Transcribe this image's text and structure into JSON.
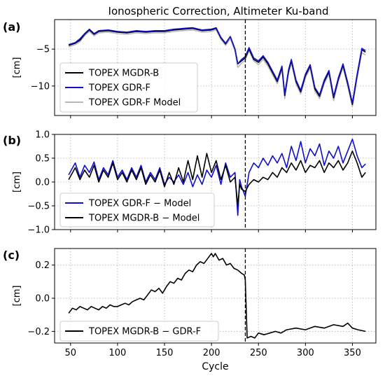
{
  "figure": {
    "title": "Ionospheric Correction, Altimeter Ku-band"
  },
  "chart_data": [
    {
      "panel": "(a)",
      "type": "line",
      "ylabel": "[cm]",
      "xlim": [
        33,
        375
      ],
      "ylim": [
        -14,
        -1
      ],
      "yticks": [
        -5,
        -10
      ],
      "xticks": [
        50,
        100,
        150,
        200,
        250,
        300,
        350
      ],
      "grid": true,
      "legend": "lower-left",
      "vline_x": 236,
      "colors": [
        "#000000",
        "#1010cc",
        "#b8b8b8"
      ],
      "series": [
        {
          "name": "TOPEX MGDR-B",
          "x": [
            48,
            55,
            60,
            65,
            70,
            75,
            80,
            90,
            100,
            110,
            120,
            130,
            140,
            150,
            160,
            170,
            180,
            190,
            200,
            205,
            210,
            215,
            220,
            225,
            228,
            232,
            236,
            240,
            245,
            250,
            255,
            260,
            265,
            270,
            275,
            278,
            282,
            285,
            290,
            295,
            300,
            305,
            310,
            315,
            320,
            325,
            330,
            335,
            340,
            345,
            350,
            355,
            360,
            364
          ],
          "y": [
            -4.5,
            -4.2,
            -3.8,
            -3.0,
            -2.4,
            -3.0,
            -2.6,
            -2.5,
            -2.7,
            -2.8,
            -2.6,
            -2.7,
            -2.6,
            -2.6,
            -2.4,
            -2.3,
            -2.2,
            -2.5,
            -2.4,
            -2.2,
            -3.5,
            -4.3,
            -3.3,
            -5.0,
            -7.0,
            -6.6,
            -6.2,
            -5.0,
            -6.4,
            -6.8,
            -6.1,
            -7.0,
            -8.2,
            -9.4,
            -7.5,
            -11.3,
            -8.0,
            -6.6,
            -9.4,
            -10.8,
            -8.6,
            -7.3,
            -10.4,
            -11.4,
            -9.4,
            -8.1,
            -11.6,
            -9.1,
            -7.2,
            -9.7,
            -12.5,
            -8.6,
            -5.1,
            -5.4
          ]
        },
        {
          "name": "TOPEX GDR-F",
          "x": [
            48,
            55,
            60,
            65,
            70,
            75,
            80,
            90,
            100,
            110,
            120,
            130,
            140,
            150,
            160,
            170,
            180,
            190,
            200,
            205,
            210,
            215,
            220,
            225,
            228,
            232,
            236,
            240,
            245,
            250,
            255,
            260,
            265,
            270,
            275,
            278,
            282,
            285,
            290,
            295,
            300,
            305,
            310,
            315,
            320,
            325,
            330,
            335,
            340,
            345,
            350,
            355,
            360,
            364
          ],
          "y": [
            -4.4,
            -4.1,
            -3.6,
            -2.9,
            -2.3,
            -2.9,
            -2.5,
            -2.4,
            -2.6,
            -2.7,
            -2.5,
            -2.6,
            -2.5,
            -2.5,
            -2.3,
            -2.2,
            -2.1,
            -2.4,
            -2.3,
            -2.1,
            -3.4,
            -4.2,
            -3.3,
            -5.0,
            -7.0,
            -6.4,
            -6.0,
            -4.8,
            -6.2,
            -6.6,
            -5.9,
            -6.8,
            -8.0,
            -9.2,
            -7.3,
            -11.1,
            -7.8,
            -6.4,
            -9.2,
            -10.6,
            -8.4,
            -7.1,
            -10.2,
            -11.2,
            -9.2,
            -7.9,
            -11.4,
            -8.9,
            -7.0,
            -9.5,
            -12.3,
            -8.4,
            -4.9,
            -5.2
          ]
        },
        {
          "name": "TOPEX GDR-F Model",
          "x": [
            48,
            55,
            60,
            65,
            70,
            75,
            80,
            90,
            100,
            110,
            120,
            130,
            140,
            150,
            160,
            170,
            180,
            190,
            200,
            205,
            210,
            215,
            220,
            225,
            228,
            232,
            236,
            240,
            245,
            250,
            255,
            260,
            265,
            270,
            275,
            278,
            282,
            285,
            290,
            295,
            300,
            305,
            310,
            315,
            320,
            325,
            330,
            335,
            340,
            345,
            350,
            355,
            360,
            364
          ],
          "y": [
            -4.7,
            -4.4,
            -4.0,
            -3.2,
            -2.6,
            -3.2,
            -2.8,
            -2.7,
            -2.9,
            -3.0,
            -2.8,
            -2.9,
            -2.8,
            -2.8,
            -2.6,
            -2.5,
            -2.4,
            -2.7,
            -2.6,
            -2.4,
            -3.7,
            -4.5,
            -3.6,
            -5.3,
            -7.5,
            -6.9,
            -6.5,
            -5.2,
            -6.6,
            -7.1,
            -6.4,
            -7.3,
            -8.5,
            -9.7,
            -7.8,
            -11.7,
            -8.3,
            -6.9,
            -9.7,
            -11.1,
            -8.9,
            -7.6,
            -10.7,
            -11.7,
            -9.7,
            -8.4,
            -12.0,
            -9.4,
            -7.5,
            -10.0,
            -12.8,
            -8.9,
            -5.5,
            -5.8
          ]
        }
      ]
    },
    {
      "panel": "(b)",
      "type": "line",
      "ylabel": "[cm]",
      "xlim": [
        33,
        375
      ],
      "ylim": [
        -1.0,
        1.0
      ],
      "yticks": [
        1.0,
        0.5,
        0.0,
        -0.5,
        -1.0
      ],
      "xticks": [
        50,
        100,
        150,
        200,
        250,
        300,
        350
      ],
      "grid": true,
      "legend": "lower-left",
      "vline_x": 236,
      "colors": [
        "#1010cc",
        "#000000"
      ],
      "series": [
        {
          "name": "TOPEX GDR-F − Model",
          "x": [
            48,
            55,
            60,
            65,
            70,
            75,
            80,
            85,
            90,
            95,
            100,
            105,
            110,
            115,
            120,
            125,
            130,
            135,
            140,
            145,
            150,
            155,
            160,
            165,
            170,
            175,
            180,
            185,
            190,
            195,
            200,
            205,
            210,
            215,
            220,
            225,
            228,
            230,
            232,
            236,
            240,
            245,
            250,
            255,
            260,
            265,
            270,
            275,
            280,
            285,
            290,
            295,
            300,
            305,
            310,
            315,
            320,
            325,
            330,
            335,
            340,
            345,
            350,
            355,
            360,
            364
          ],
          "y": [
            0.15,
            0.4,
            0.1,
            0.35,
            0.2,
            0.42,
            0.05,
            0.3,
            0.15,
            0.45,
            0.1,
            0.25,
            0.05,
            0.3,
            0.1,
            0.35,
            0.0,
            0.2,
            0.05,
            0.3,
            -0.05,
            0.1,
            0.0,
            0.15,
            -0.05,
            0.2,
            -0.1,
            0.15,
            -0.05,
            0.25,
            0.1,
            0.35,
            -0.05,
            0.4,
            0.1,
            0.2,
            -0.7,
            0.05,
            -0.1,
            -0.3,
            0.2,
            0.4,
            0.3,
            0.5,
            0.35,
            0.55,
            0.4,
            0.6,
            0.3,
            0.75,
            0.45,
            0.85,
            0.4,
            0.7,
            0.55,
            0.8,
            0.35,
            0.65,
            0.5,
            0.75,
            0.4,
            0.65,
            0.9,
            0.55,
            0.3,
            0.38
          ]
        },
        {
          "name": "TOPEX MGDR-B − Model",
          "x": [
            48,
            55,
            60,
            65,
            70,
            75,
            80,
            85,
            90,
            95,
            100,
            105,
            110,
            115,
            120,
            125,
            130,
            135,
            140,
            145,
            150,
            155,
            160,
            165,
            170,
            175,
            180,
            185,
            190,
            195,
            200,
            205,
            210,
            215,
            220,
            225,
            228,
            230,
            232,
            236,
            240,
            245,
            250,
            255,
            260,
            265,
            270,
            275,
            280,
            285,
            290,
            295,
            300,
            305,
            310,
            315,
            320,
            325,
            330,
            335,
            340,
            345,
            350,
            355,
            360,
            364
          ],
          "y": [
            0.05,
            0.3,
            0.05,
            0.25,
            0.1,
            0.35,
            0.0,
            0.25,
            0.1,
            0.4,
            0.05,
            0.2,
            0.0,
            0.25,
            0.05,
            0.3,
            -0.05,
            0.15,
            0.0,
            0.25,
            -0.1,
            0.2,
            -0.05,
            0.3,
            0.0,
            0.45,
            0.05,
            0.55,
            0.1,
            0.6,
            0.2,
            0.45,
            0.05,
            0.35,
            0.0,
            0.1,
            -0.5,
            -0.05,
            -0.15,
            -0.2,
            -0.05,
            0.05,
            0.0,
            0.1,
            0.05,
            0.2,
            0.1,
            0.3,
            0.2,
            0.4,
            0.25,
            0.45,
            0.2,
            0.35,
            0.3,
            0.45,
            0.2,
            0.4,
            0.3,
            0.45,
            0.25,
            0.4,
            0.65,
            0.4,
            0.1,
            0.2
          ]
        }
      ]
    },
    {
      "panel": "(c)",
      "type": "line",
      "ylabel": "[cm]",
      "xlim": [
        33,
        375
      ],
      "ylim": [
        -0.27,
        0.3
      ],
      "yticks": [
        0.2,
        0.0,
        -0.2
      ],
      "xticks": [
        50,
        100,
        150,
        200,
        250,
        300,
        350
      ],
      "xlabel": "Cycle",
      "grid": true,
      "legend": "lower-left",
      "vline_x": 236,
      "colors": [
        "#000000"
      ],
      "series": [
        {
          "name": "TOPEX MGDR-B − GDR-F",
          "x": [
            48,
            52,
            56,
            60,
            64,
            68,
            72,
            76,
            80,
            84,
            88,
            92,
            96,
            100,
            104,
            108,
            112,
            116,
            120,
            124,
            128,
            132,
            136,
            140,
            144,
            148,
            152,
            156,
            160,
            164,
            168,
            172,
            176,
            180,
            184,
            188,
            192,
            196,
            200,
            202,
            204,
            208,
            212,
            216,
            220,
            224,
            228,
            232,
            235,
            236,
            238,
            242,
            246,
            250,
            256,
            262,
            268,
            274,
            280,
            290,
            300,
            310,
            320,
            330,
            340,
            345,
            350,
            356,
            364
          ],
          "y": [
            -0.09,
            -0.06,
            -0.07,
            -0.05,
            -0.06,
            -0.07,
            -0.05,
            -0.06,
            -0.07,
            -0.05,
            -0.06,
            -0.04,
            -0.05,
            -0.05,
            -0.04,
            -0.03,
            -0.04,
            -0.02,
            -0.01,
            0.0,
            -0.01,
            0.02,
            0.05,
            0.04,
            0.06,
            0.03,
            0.07,
            0.1,
            0.09,
            0.12,
            0.11,
            0.15,
            0.17,
            0.16,
            0.2,
            0.22,
            0.21,
            0.24,
            0.27,
            0.25,
            0.27,
            0.23,
            0.24,
            0.2,
            0.21,
            0.18,
            0.17,
            0.15,
            0.14,
            0.11,
            -0.24,
            -0.23,
            -0.24,
            -0.21,
            -0.22,
            -0.21,
            -0.2,
            -0.21,
            -0.19,
            -0.18,
            -0.19,
            -0.17,
            -0.18,
            -0.16,
            -0.17,
            -0.15,
            -0.18,
            -0.19,
            -0.2
          ]
        }
      ]
    }
  ]
}
